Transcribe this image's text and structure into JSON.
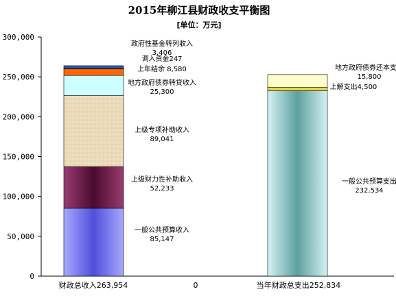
{
  "chart_data": {
    "type": "bar",
    "stacked": true,
    "title": "2015年柳江县财政收支平衡图",
    "unit_label": "[单位：万元]",
    "ylim": [
      0,
      300000
    ],
    "yticks": [
      "0",
      "50,000",
      "100,000",
      "150,000",
      "200,000",
      "250,000",
      "300,000"
    ],
    "ytick_values": [
      0,
      50000,
      100000,
      150000,
      200000,
      250000,
      300000
    ],
    "categories": [
      "财政总收入263,954",
      "0",
      "当年财政总支出252,834"
    ],
    "bars": [
      {
        "category": "财政总收入263,954",
        "segments": [
          {
            "name": "一般公共预算收入",
            "value_text": "85,147",
            "value": 85147,
            "color": "#8f8fff"
          },
          {
            "name": "上级财力性补助收入",
            "value_text": "52,233",
            "value": 52233,
            "color": "#7a1f52"
          },
          {
            "name": "上级专项补助收入",
            "value_text": "89,041",
            "value": 89041,
            "color": "#ead9b6"
          },
          {
            "name": "地方政府债券转贷收入",
            "value_text": "25,300",
            "value": 25300,
            "color": "#ccffff"
          },
          {
            "name": "上年结余",
            "value_text": "8,580",
            "value": 8580,
            "color": "#ff6600"
          },
          {
            "name": "调入资金",
            "value_text": "247",
            "value": 247,
            "color": "#00b050"
          },
          {
            "name": "政府性基金转列收入",
            "value_text": "3,406",
            "value": 3406,
            "color": "#1f5fbf"
          }
        ]
      },
      {
        "category": "当年财政总支出252,834",
        "segments": [
          {
            "name": "一般公共预算支出",
            "value_text": "232,534",
            "value": 232534,
            "color": "#8fc4c4"
          },
          {
            "name": "上解支出",
            "value_text": "4,500",
            "value": 4500,
            "color": "#e6d84a"
          },
          {
            "name": "地方政府债券还本支出",
            "value_text": "15,800",
            "value": 15800,
            "color": "#ffffcc"
          }
        ]
      }
    ]
  }
}
